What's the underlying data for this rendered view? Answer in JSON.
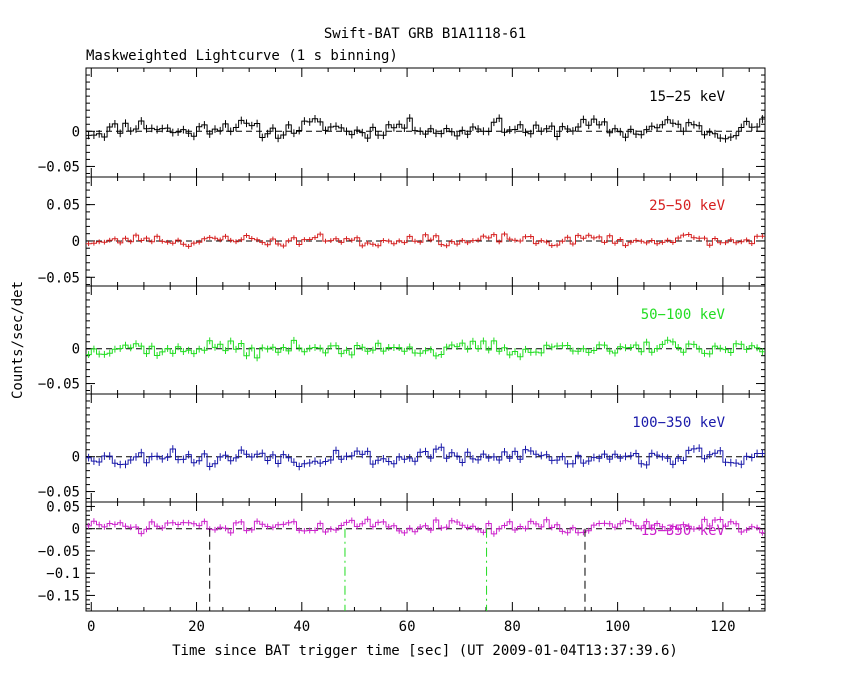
{
  "chart_data": {
    "type": "line",
    "title": "Swift-BAT GRB B1A1118-61",
    "subtitle": "Maskweighted Lightcurve (1 s binning)",
    "xlabel": "Time since BAT trigger time [sec] (UT 2009-01-04T13:37:39.6)",
    "ylabel": "Counts/sec/det",
    "xlim": [
      -1,
      128
    ],
    "x_ticks": [
      "0",
      "20",
      "40",
      "60",
      "80",
      "100",
      "120"
    ],
    "panels": [
      {
        "name": "15-25 keV",
        "label": "15−25 keV",
        "color": "#000000",
        "ylim": [
          -0.065,
          0.09
        ],
        "y_ticks": [
          {
            "v": 0,
            "t": "0"
          },
          {
            "v": -0.05,
            "t": "−0.05"
          }
        ],
        "amplitude": 0.01,
        "offset": 0.008,
        "seed": 11
      },
      {
        "name": "25-50 keV",
        "label": "25−50 keV",
        "color": "#d62020",
        "ylim": [
          -0.062,
          0.088
        ],
        "y_ticks": [
          {
            "v": 0.05,
            "t": "0.05"
          },
          {
            "v": 0,
            "t": "0"
          },
          {
            "v": -0.05,
            "t": "−0.05"
          }
        ],
        "amplitude": 0.006,
        "offset": 0.002,
        "seed": 23
      },
      {
        "name": "50-100 keV",
        "label": "50−100 keV",
        "color": "#22dd22",
        "ylim": [
          -0.065,
          0.09
        ],
        "y_ticks": [
          {
            "v": 0,
            "t": "0"
          },
          {
            "v": -0.05,
            "t": "−0.05"
          }
        ],
        "amplitude": 0.009,
        "offset": 0.0,
        "seed": 37
      },
      {
        "name": "100-350 keV",
        "label": "100−350 keV",
        "color": "#1a1aaa",
        "ylim": [
          -0.065,
          0.09
        ],
        "y_ticks": [
          {
            "v": 0,
            "t": "0"
          },
          {
            "v": -0.05,
            "t": "−0.05"
          }
        ],
        "amplitude": 0.01,
        "offset": 0.0,
        "seed": 53
      },
      {
        "name": "15-350 keV",
        "label": "15−350 keV",
        "color": "#cc22cc",
        "ylim": [
          -0.185,
          0.06
        ],
        "y_ticks": [
          {
            "v": 0.05,
            "t": "0.05"
          },
          {
            "v": 0,
            "t": "0"
          },
          {
            "v": -0.05,
            "t": "−0.05"
          },
          {
            "v": -0.1,
            "t": "−0.1"
          },
          {
            "v": -0.15,
            "t": "−0.15"
          }
        ],
        "amplitude": 0.012,
        "offset": 0.012,
        "seed": 71
      }
    ],
    "vertical_markers": [
      {
        "x": 22.5,
        "color": "#000000",
        "style": "dash"
      },
      {
        "x": 48.2,
        "color": "#22dd22",
        "style": "dashdot"
      },
      {
        "x": 75.1,
        "color": "#22dd22",
        "style": "dashdot"
      },
      {
        "x": 93.8,
        "color": "#000000",
        "style": "dash"
      }
    ],
    "grid": false,
    "legend": "none (labels inside panels, top-right)"
  }
}
